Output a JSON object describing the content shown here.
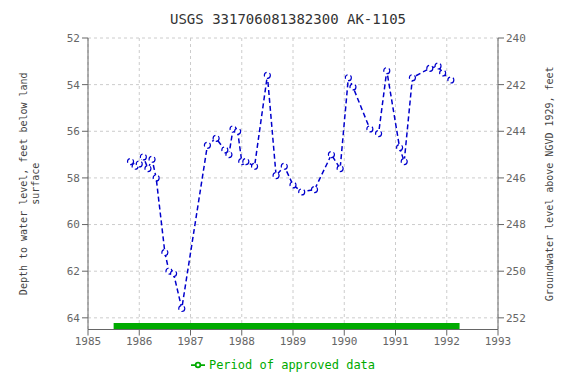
{
  "chart_data": {
    "type": "line",
    "title": "USGS 331706081382300 AK-1105",
    "ylabel": "Depth to water level, feet below land\n surface",
    "y2label": "Groundwater level above NGVD 1929, feet",
    "xlim": [
      1985,
      1993
    ],
    "xticks": [
      1985,
      1986,
      1987,
      1988,
      1989,
      1990,
      1991,
      1992,
      1993
    ],
    "ylim": [
      64.5,
      52.0
    ],
    "yticks": [
      52,
      54,
      56,
      58,
      60,
      62,
      64
    ],
    "y2lim": [
      252.5,
      240.0
    ],
    "y2ticks": [
      252,
      250,
      248,
      246,
      244,
      242,
      240
    ],
    "grid": true,
    "legend": "bottom",
    "series": [
      {
        "color": "#0000cc",
        "marker": "o",
        "line_style": "dashed",
        "x": [
          1985.83,
          1985.92,
          1986.0,
          1986.08,
          1986.17,
          1986.25,
          1986.33,
          1986.5,
          1986.58,
          1986.67,
          1986.83,
          1987.33,
          1987.5,
          1987.67,
          1987.75,
          1987.83,
          1987.92,
          1988.0,
          1988.08,
          1988.25,
          1988.5,
          1988.67,
          1988.83,
          1989.0,
          1989.17,
          1989.42,
          1989.75,
          1989.92,
          1990.08,
          1990.17,
          1990.5,
          1990.67,
          1990.83,
          1991.08,
          1991.17,
          1991.33,
          1991.67,
          1991.83,
          1991.92,
          1992.08
        ],
        "values": [
          57.3,
          57.5,
          57.4,
          57.1,
          57.6,
          57.2,
          58.0,
          61.2,
          62.0,
          62.1,
          63.6,
          56.6,
          56.3,
          56.8,
          57.0,
          55.9,
          56.0,
          57.3,
          57.3,
          57.5,
          53.6,
          57.9,
          57.5,
          58.3,
          58.6,
          58.5,
          57.0,
          57.6,
          53.7,
          54.1,
          55.9,
          56.1,
          53.4,
          56.7,
          57.3,
          53.7,
          53.3,
          53.2,
          53.5,
          53.8
        ]
      },
      {
        "name": "Period of approved data",
        "color": "#00aa00",
        "marker": "none",
        "line_style": "solid",
        "x": [
          1985.5,
          1992.25
        ],
        "values": [
          64.35,
          64.35
        ]
      }
    ]
  }
}
